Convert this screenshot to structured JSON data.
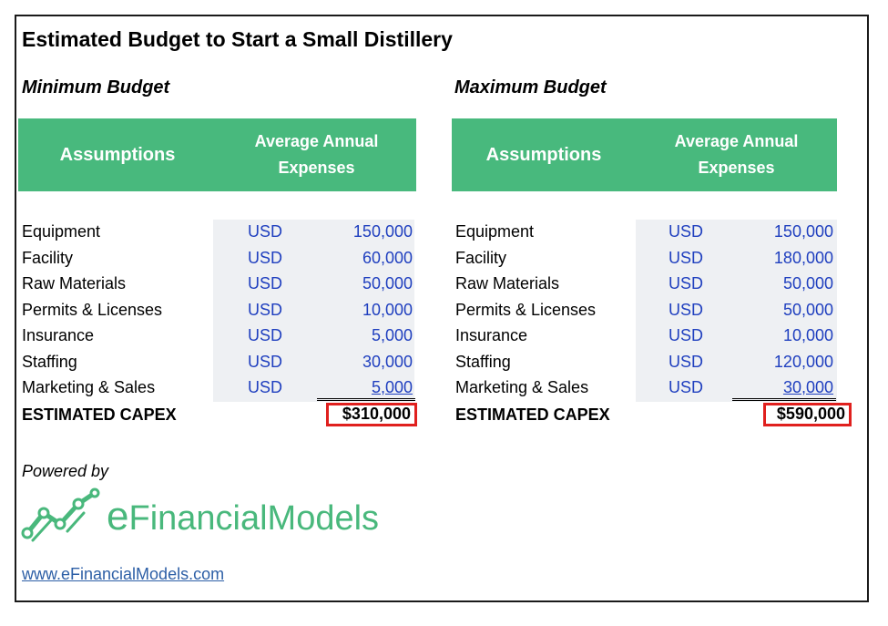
{
  "title": "Estimated Budget to Start a Small Distillery",
  "minimum": {
    "heading": "Minimum Budget",
    "header_assumptions": "Assumptions",
    "header_expenses": "Average Annual Expenses",
    "rows": [
      {
        "label": "Equipment",
        "currency": "USD",
        "value": "150,000"
      },
      {
        "label": "Facility",
        "currency": "USD",
        "value": "60,000"
      },
      {
        "label": "Raw Materials",
        "currency": "USD",
        "value": "50,000"
      },
      {
        "label": "Permits & Licenses",
        "currency": "USD",
        "value": "10,000"
      },
      {
        "label": "Insurance",
        "currency": "USD",
        "value": "5,000"
      },
      {
        "label": "Staffing",
        "currency": "USD",
        "value": "30,000"
      },
      {
        "label": "Marketing & Sales",
        "currency": "USD",
        "value": "5,000"
      }
    ],
    "total_label": "ESTIMATED CAPEX",
    "total_value": "$310,000"
  },
  "maximum": {
    "heading": "Maximum Budget",
    "header_assumptions": "Assumptions",
    "header_expenses": "Average Annual Expenses",
    "rows": [
      {
        "label": "Equipment",
        "currency": "USD",
        "value": "150,000"
      },
      {
        "label": "Facility",
        "currency": "USD",
        "value": "180,000"
      },
      {
        "label": "Raw Materials",
        "currency": "USD",
        "value": "50,000"
      },
      {
        "label": "Permits & Licenses",
        "currency": "USD",
        "value": "50,000"
      },
      {
        "label": "Insurance",
        "currency": "USD",
        "value": "10,000"
      },
      {
        "label": "Staffing",
        "currency": "USD",
        "value": "120,000"
      },
      {
        "label": "Marketing & Sales",
        "currency": "USD",
        "value": "30,000"
      }
    ],
    "total_label": "ESTIMATED CAPEX",
    "total_value": "$590,000"
  },
  "powered_by": "Powered by",
  "logo": {
    "prefix": "e",
    "text": "FinancialModels",
    "icon": "chart-line-icon"
  },
  "website": "www.eFinancialModels.com",
  "colors": {
    "header_green": "#48b97d",
    "value_blue": "#1f3fbf",
    "highlight_red": "#e0201e",
    "logo_green": "#49b87c",
    "link_blue": "#2d5fa6"
  }
}
